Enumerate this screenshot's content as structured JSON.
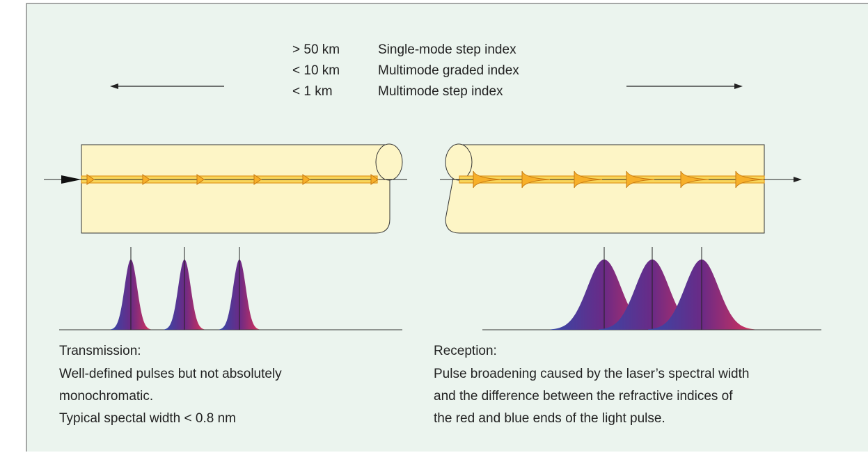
{
  "distances": [
    {
      "range": "> 50 km",
      "fiber": "Single-mode step index"
    },
    {
      "range": "< 10 km",
      "fiber": "Multimode graded index"
    },
    {
      "range": "< 1 km",
      "fiber": "Multimode step index"
    }
  ],
  "transmission": {
    "heading": "Transmission:",
    "lines": [
      "Well-defined pulses but not absolutely",
      "monochromatic.",
      "Typical spectal width < 0.8 nm"
    ]
  },
  "reception": {
    "heading": "Reception:",
    "lines": [
      "Pulse broadening caused by the laser’s spectral width",
      "and the difference between the refractive indices of",
      "the red and blue ends of the light pulse."
    ]
  }
}
